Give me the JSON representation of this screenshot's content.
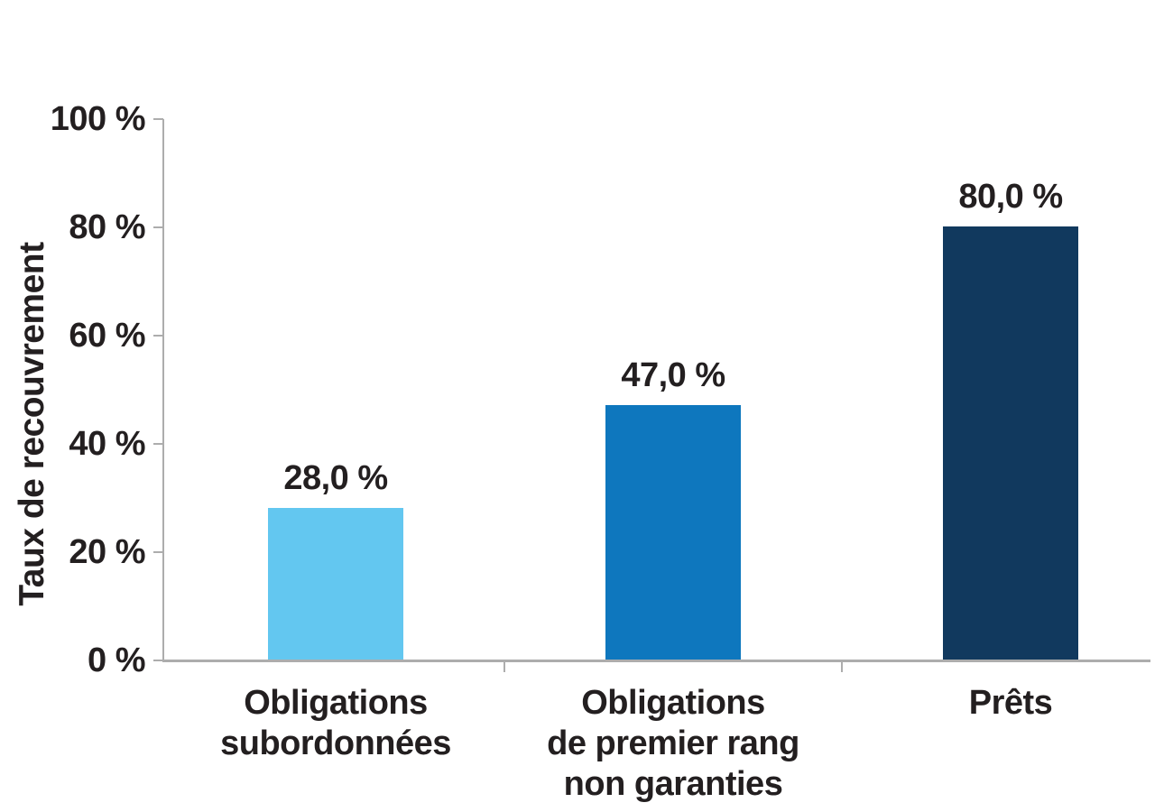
{
  "chart_data": {
    "type": "bar",
    "title": "",
    "xlabel": "",
    "ylabel": "Taux de recouvrement",
    "ylim": [
      0,
      100
    ],
    "grid": false,
    "legend_position": "none",
    "background": "#FFFFFF",
    "y_ticks": [
      {
        "label": "100 %",
        "value": 100
      },
      {
        "label": "80 %",
        "value": 80
      },
      {
        "label": "60 %",
        "value": 60
      },
      {
        "label": "40 %",
        "value": 40
      },
      {
        "label": "20 %",
        "value": 20
      },
      {
        "label": "0 %",
        "value": 0
      }
    ],
    "bars": [
      {
        "category_lines": [
          "Obligations",
          "subordonnées"
        ],
        "value": 28.0,
        "value_label": "28,0 %",
        "color": "#63C7F0"
      },
      {
        "category_lines": [
          "Obligations",
          "de premier rang",
          "non garanties"
        ],
        "value": 47.0,
        "value_label": "47,0 %",
        "color": "#0E77BE"
      },
      {
        "category_lines": [
          "Prêts"
        ],
        "value": 80.0,
        "value_label": "80,0 %",
        "color": "#11395E"
      }
    ],
    "colors": {
      "axis": "#ADADAD",
      "text": "#231F20"
    }
  }
}
